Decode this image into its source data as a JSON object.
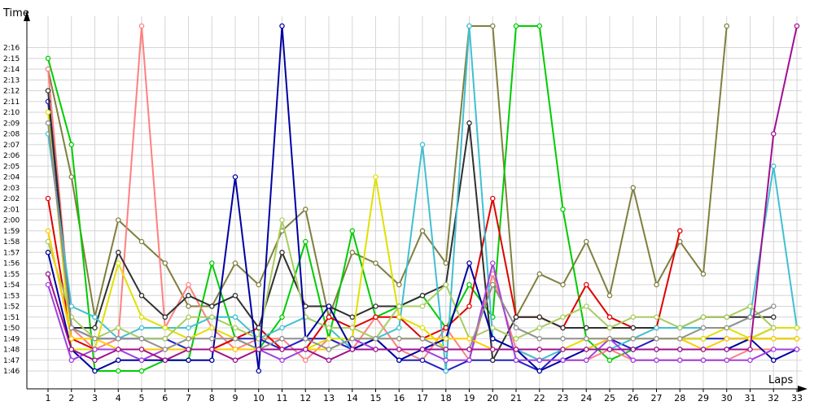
{
  "chart_data": {
    "type": "line",
    "title": "",
    "ylabel": "Time",
    "xlabel": "Laps",
    "x": [
      1,
      2,
      3,
      4,
      5,
      6,
      7,
      8,
      9,
      10,
      11,
      12,
      13,
      14,
      15,
      16,
      17,
      18,
      19,
      20,
      21,
      22,
      23,
      24,
      25,
      26,
      27,
      28,
      29,
      30,
      31,
      32,
      33
    ],
    "xlim": [
      1,
      33
    ],
    "ylim": [
      "1:45",
      "2:18"
    ],
    "y_ticks": [
      "1:46",
      "1:47",
      "1:48",
      "1:49",
      "1:50",
      "1:51",
      "1:52",
      "1:53",
      "1:54",
      "1:55",
      "1:56",
      "1:57",
      "1:58",
      "1:59",
      "2:00",
      "2:01",
      "2:02",
      "2:03",
      "2:04",
      "2:05",
      "2:06",
      "2:07",
      "2:08",
      "2:09",
      "2:10",
      "2:11",
      "2:12",
      "2:13",
      "2:14",
      "2:15",
      "2:16"
    ],
    "grid": "on",
    "legend": "none",
    "series": [
      {
        "color": "#7f7f3f",
        "values": [
          "2:14",
          "2:04",
          "1:51",
          "2:00",
          "1:58",
          "1:56",
          "1:52",
          "1:52",
          "1:56",
          "1:54",
          "1:59",
          "2:01",
          "1:51",
          "1:57",
          "1:56",
          "1:54",
          "1:59",
          "1:56",
          "2:18",
          "2:18",
          "1:51",
          "1:55",
          "1:54",
          "1:58",
          "1:53",
          "2:03",
          "1:54",
          "1:58",
          "1:55",
          "2:18",
          null,
          null,
          null
        ]
      },
      {
        "color": "#00cc00",
        "values": [
          "2:15",
          "2:07",
          "1:46",
          "1:46",
          "1:46",
          "1:47",
          "1:47",
          "1:56",
          "1:49",
          "1:48",
          "1:51",
          "1:58",
          "1:49",
          "1:59",
          "1:51",
          "1:52",
          "1:53",
          "1:50",
          "1:54",
          "1:51",
          "2:18",
          "2:18",
          "2:01",
          "1:49",
          "1:47",
          "1:48",
          "1:48",
          "1:48",
          "1:48",
          "1:48",
          "1:49",
          "1:49",
          "1:49"
        ]
      },
      {
        "color": "#ff8080",
        "values": [
          "2:14",
          "1:50",
          "1:48",
          "1:49",
          "2:18",
          "1:50",
          "1:54",
          "1:50",
          "1:48",
          "1:49",
          "1:49",
          "1:47",
          "1:49",
          "1:48",
          "1:51",
          "1:48",
          "1:47",
          "1:50",
          "1:47",
          "1:55",
          "1:48",
          "1:47",
          "1:47",
          "1:47",
          "1:48",
          "1:47",
          "1:47",
          "1:47",
          "1:47",
          "1:47",
          "1:48",
          "1:48",
          "1:48"
        ]
      },
      {
        "color": "#2020c0",
        "values": [
          "2:11",
          "1:50",
          "1:49",
          "1:49",
          "1:49",
          "1:49",
          "1:48",
          "1:48",
          "1:49",
          "1:49",
          "1:48",
          "1:49",
          "1:49",
          "1:48",
          "1:49",
          "1:47",
          "1:47",
          "1:46",
          "1:47",
          "1:47",
          "1:47",
          "1:46",
          "1:48",
          "1:48",
          "1:49",
          "1:48",
          "1:49",
          "1:49",
          "1:49",
          "1:49",
          "1:49",
          "1:50",
          "1:50"
        ]
      },
      {
        "color": "#e00000",
        "values": [
          "2:02",
          "1:49",
          "1:48",
          "1:48",
          "1:48",
          "1:48",
          "1:48",
          "1:48",
          "1:49",
          "1:50",
          "1:48",
          "1:48",
          "1:51",
          "1:50",
          "1:51",
          "1:51",
          "1:49",
          "1:50",
          "1:52",
          "2:02",
          "1:51",
          "1:51",
          "1:50",
          "1:54",
          "1:51",
          "1:50",
          "1:50",
          "1:59",
          null,
          null,
          null,
          null,
          null
        ]
      },
      {
        "color": "#303030",
        "values": [
          "2:12",
          "1:50",
          "1:50",
          "1:57",
          "1:53",
          "1:51",
          "1:53",
          "1:52",
          "1:53",
          "1:50",
          "1:57",
          "1:52",
          "1:52",
          "1:51",
          "1:52",
          "1:52",
          "1:53",
          "1:54",
          "2:09",
          "1:47",
          "1:51",
          "1:51",
          "1:50",
          "1:50",
          "1:50",
          "1:50",
          "1:50",
          "1:50",
          "1:51",
          "1:51",
          "1:51",
          "1:51",
          null
        ]
      },
      {
        "color": "#40c0d0",
        "values": [
          "2:08",
          "1:52",
          "1:51",
          "1:49",
          "1:50",
          "1:50",
          "1:50",
          "1:51",
          "1:51",
          "1:49",
          "1:50",
          "1:51",
          "1:50",
          "1:48",
          "1:49",
          "1:50",
          "2:07",
          "1:46",
          "2:18",
          "1:49",
          "1:48",
          "1:47",
          "1:48",
          "1:48",
          "1:48",
          "1:49",
          "1:50",
          "1:50",
          "1:50",
          "1:50",
          "1:51",
          "2:05",
          "1:50"
        ]
      },
      {
        "color": "#e0e000",
        "values": [
          "2:10",
          "1:48",
          "1:48",
          "1:56",
          "1:51",
          "1:50",
          "1:49",
          "1:50",
          "1:49",
          "1:48",
          "1:48",
          "1:48",
          "1:49",
          "1:49",
          "2:04",
          "1:51",
          "1:50",
          "1:48",
          "1:48",
          "1:48",
          "1:48",
          "1:48",
          "1:48",
          "1:49",
          "1:49",
          "1:49",
          "1:49",
          "1:49",
          "1:49",
          "1:50",
          "1:49",
          "1:50",
          "1:50"
        ]
      },
      {
        "color": "#a8cc60",
        "values": [
          "1:58",
          "1:51",
          "1:49",
          "1:50",
          "1:49",
          "1:49",
          "1:51",
          "1:51",
          "1:50",
          "1:49",
          "2:00",
          "1:51",
          "1:50",
          "1:50",
          "1:49",
          "1:52",
          "1:52",
          "1:54",
          "1:49",
          "1:50",
          "1:49",
          "1:50",
          "1:51",
          "1:52",
          "1:50",
          "1:51",
          "1:51",
          "1:50",
          "1:51",
          "1:51",
          "1:52",
          "1:50",
          null
        ]
      },
      {
        "color": "#0000a0",
        "values": [
          "1:57",
          "1:48",
          "1:46",
          "1:47",
          "1:47",
          "1:47",
          "1:47",
          "1:47",
          "2:04",
          "1:46",
          "2:18",
          "1:49",
          "1:52",
          "1:48",
          "1:49",
          "1:47",
          "1:48",
          "1:49",
          "1:56",
          "1:49",
          "1:48",
          "1:46",
          "1:47",
          "1:48",
          "1:48",
          "1:48",
          "1:48",
          "1:48",
          "1:48",
          "1:48",
          "1:49",
          "1:47",
          "1:48"
        ]
      },
      {
        "color": "#a040e0",
        "values": [
          "1:54",
          "1:47",
          "1:48",
          "1:48",
          "1:47",
          "1:48",
          "1:48",
          "1:48",
          "1:48",
          "1:48",
          "1:47",
          "1:48",
          "1:48",
          "1:49",
          "1:48",
          "1:48",
          "1:48",
          "1:47",
          "1:47",
          "1:56",
          "1:47",
          "1:47",
          "1:47",
          "1:47",
          "1:49",
          "1:47",
          "1:47",
          "1:47",
          "1:47",
          "1:47",
          "1:47",
          "1:48",
          "1:48"
        ]
      },
      {
        "color": "#ffcc00",
        "values": [
          "1:59",
          "1:49",
          "1:49",
          "1:48",
          "1:48",
          "1:48",
          "1:48",
          "1:48",
          "1:48",
          "1:48",
          "1:48",
          "1:48",
          "1:48",
          "1:49",
          "1:49",
          "1:49",
          "1:49",
          "1:49",
          "1:49",
          "1:48",
          "1:48",
          "1:48",
          "1:48",
          "1:48",
          "1:49",
          "1:49",
          "1:49",
          "1:49",
          "1:48",
          "1:49",
          "1:49",
          "1:49",
          "1:49"
        ]
      },
      {
        "color": "#909090",
        "values": [
          "2:09",
          "1:50",
          "1:49",
          "1:49",
          "1:49",
          "1:48",
          "1:49",
          "1:49",
          "1:49",
          "1:48",
          "1:49",
          "1:49",
          "1:48",
          "1:49",
          "1:49",
          "1:49",
          "1:49",
          "1:48",
          "1:48",
          "1:54",
          "1:50",
          "1:49",
          "1:49",
          "1:49",
          "1:49",
          "1:49",
          "1:49",
          "1:49",
          "1:50",
          "1:50",
          "1:51",
          "1:52",
          null
        ]
      },
      {
        "color": "#a01090",
        "values": [
          "1:55",
          "1:48",
          "1:47",
          "1:48",
          "1:48",
          "1:47",
          "1:48",
          "1:48",
          "1:47",
          "1:48",
          "1:48",
          "1:48",
          "1:47",
          "1:48",
          "1:48",
          "1:48",
          "1:48",
          "1:48",
          "1:48",
          "1:48",
          "1:48",
          "1:48",
          "1:48",
          "1:48",
          "1:48",
          "1:48",
          "1:48",
          "1:48",
          "1:48",
          "1:48",
          "1:48",
          "2:08",
          "2:18"
        ]
      }
    ]
  }
}
